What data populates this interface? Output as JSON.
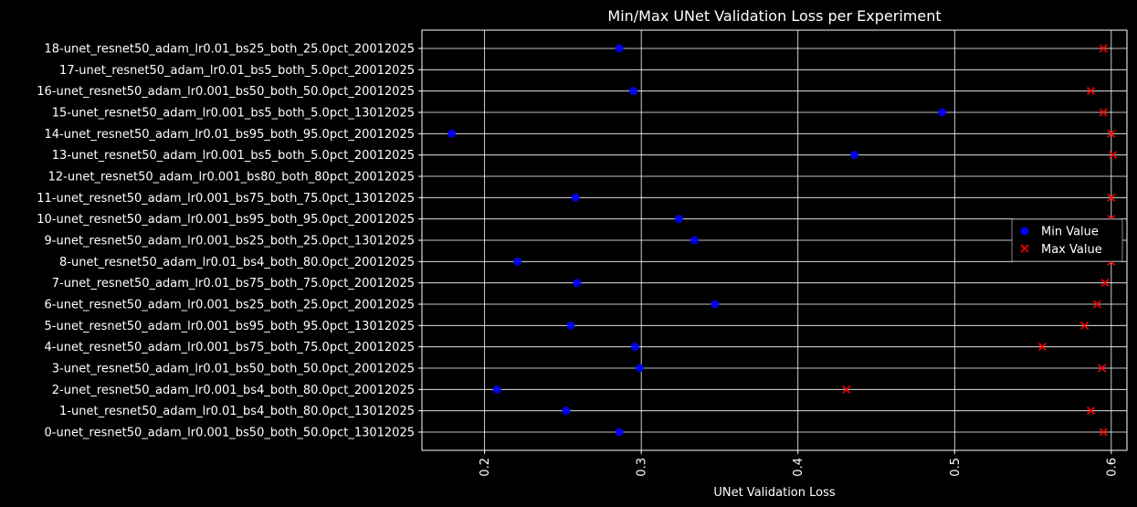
{
  "chart_data": {
    "type": "scatter",
    "title": "Min/Max UNet Validation Loss per Experiment",
    "xlabel": "UNet Validation Loss",
    "ylabel": "",
    "xlim": [
      0.16,
      0.61
    ],
    "xticks": [
      "0.2",
      "0.3",
      "0.4",
      "0.5",
      "0.6"
    ],
    "xtick_values": [
      0.2,
      0.3,
      0.4,
      0.5,
      0.6
    ],
    "grid": true,
    "legend": "center-right",
    "categories": [
      "0-unet_resnet50_adam_lr0.001_bs50_both_50.0pct_13012025",
      "1-unet_resnet50_adam_lr0.01_bs4_both_80.0pct_13012025",
      "2-unet_resnet50_adam_lr0.001_bs4_both_80.0pct_20012025",
      "3-unet_resnet50_adam_lr0.01_bs50_both_50.0pct_20012025",
      "4-unet_resnet50_adam_lr0.001_bs75_both_75.0pct_20012025",
      "5-unet_resnet50_adam_lr0.001_bs95_both_95.0pct_13012025",
      "6-unet_resnet50_adam_lr0.001_bs25_both_25.0pct_20012025",
      "7-unet_resnet50_adam_lr0.01_bs75_both_75.0pct_20012025",
      "8-unet_resnet50_adam_lr0.01_bs4_both_80.0pct_20012025",
      "9-unet_resnet50_adam_lr0.001_bs25_both_25.0pct_13012025",
      "10-unet_resnet50_adam_lr0.001_bs95_both_95.0pct_20012025",
      "11-unet_resnet50_adam_lr0.001_bs75_both_75.0pct_13012025",
      "12-unet_resnet50_adam_lr0.001_bs80_both_80pct_20012025",
      "13-unet_resnet50_adam_lr0.001_bs5_both_5.0pct_20012025",
      "14-unet_resnet50_adam_lr0.01_bs95_both_95.0pct_20012025",
      "15-unet_resnet50_adam_lr0.001_bs5_both_5.0pct_13012025",
      "16-unet_resnet50_adam_lr0.001_bs50_both_50.0pct_20012025",
      "17-unet_resnet50_adam_lr0.01_bs5_both_5.0pct_20012025",
      "18-unet_resnet50_adam_lr0.01_bs25_both_25.0pct_20012025"
    ],
    "series": [
      {
        "name": "Min Value",
        "marker": "circle",
        "color": "#0000ff",
        "values": [
          0.286,
          0.252,
          0.208,
          0.299,
          0.296,
          0.255,
          0.347,
          0.259,
          0.221,
          0.334,
          0.324,
          0.258,
          null,
          0.436,
          0.179,
          0.492,
          0.295,
          null,
          0.286
        ]
      },
      {
        "name": "Max Value",
        "marker": "x",
        "color": "#ff0000",
        "values": [
          0.595,
          0.587,
          0.431,
          0.594,
          0.556,
          0.583,
          0.591,
          0.596,
          0.6,
          null,
          0.6,
          0.6,
          null,
          0.601,
          0.6,
          0.595,
          0.587,
          null,
          0.595
        ]
      }
    ]
  }
}
